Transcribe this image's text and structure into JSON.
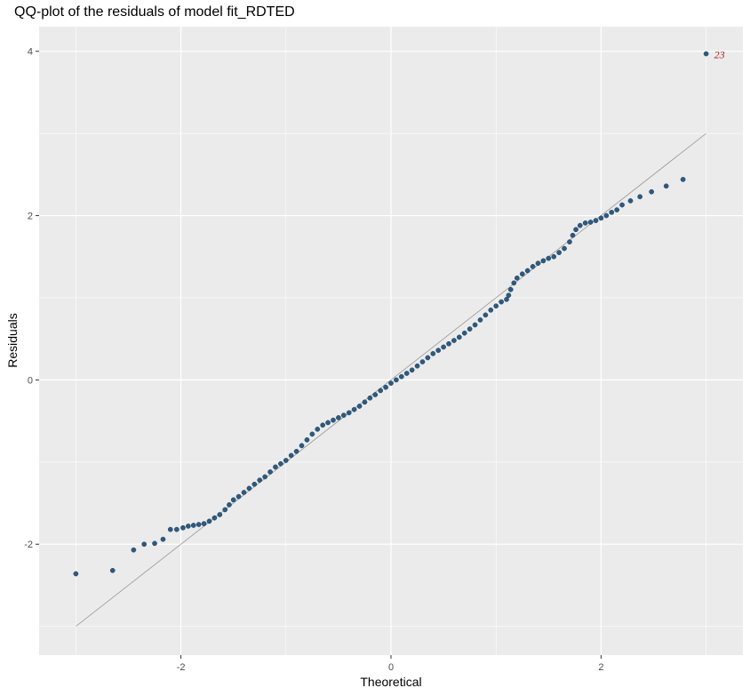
{
  "chart_data": {
    "type": "scatter",
    "title": "QQ-plot of the residuals of model fit_RDTED",
    "xlabel": "Theoretical",
    "ylabel": "Residuals",
    "xlim": [
      -3.35,
      3.35
    ],
    "ylim": [
      -3.35,
      4.3
    ],
    "x_ticks": [
      -2,
      0,
      2
    ],
    "x_tick_labels": [
      "-2",
      "0",
      "2"
    ],
    "y_ticks": [
      -2,
      0,
      2,
      4
    ],
    "y_tick_labels": [
      "-2",
      "0",
      "2",
      "4"
    ],
    "grid": true,
    "background": "#EBEBEB",
    "point_color": "#2E5A7F",
    "label_color": "#B22222",
    "reference_line": {
      "from": [
        -3.0,
        -3.0
      ],
      "to": [
        3.0,
        3.0
      ]
    },
    "points": [
      [
        -3.0,
        -2.36
      ],
      [
        -2.65,
        -2.32
      ],
      [
        -2.45,
        -2.07
      ],
      [
        -2.35,
        -2.0
      ],
      [
        -2.25,
        -1.99
      ],
      [
        -2.17,
        -1.94
      ],
      [
        -2.1,
        -1.82
      ],
      [
        -2.04,
        -1.82
      ],
      [
        -1.98,
        -1.8
      ],
      [
        -1.93,
        -1.78
      ],
      [
        -1.88,
        -1.77
      ],
      [
        -1.83,
        -1.76
      ],
      [
        -1.78,
        -1.75
      ],
      [
        -1.73,
        -1.72
      ],
      [
        -1.68,
        -1.68
      ],
      [
        -1.63,
        -1.64
      ],
      [
        -1.58,
        -1.58
      ],
      [
        -1.54,
        -1.52
      ],
      [
        -1.5,
        -1.46
      ],
      [
        -1.45,
        -1.42
      ],
      [
        -1.4,
        -1.37
      ],
      [
        -1.35,
        -1.32
      ],
      [
        -1.3,
        -1.27
      ],
      [
        -1.25,
        -1.22
      ],
      [
        -1.2,
        -1.18
      ],
      [
        -1.15,
        -1.12
      ],
      [
        -1.1,
        -1.06
      ],
      [
        -1.05,
        -1.02
      ],
      [
        -1.0,
        -0.98
      ],
      [
        -0.95,
        -0.92
      ],
      [
        -0.9,
        -0.87
      ],
      [
        -0.85,
        -0.8
      ],
      [
        -0.8,
        -0.73
      ],
      [
        -0.75,
        -0.66
      ],
      [
        -0.7,
        -0.6
      ],
      [
        -0.65,
        -0.55
      ],
      [
        -0.6,
        -0.52
      ],
      [
        -0.55,
        -0.49
      ],
      [
        -0.5,
        -0.46
      ],
      [
        -0.45,
        -0.43
      ],
      [
        -0.4,
        -0.4
      ],
      [
        -0.35,
        -0.36
      ],
      [
        -0.3,
        -0.32
      ],
      [
        -0.25,
        -0.27
      ],
      [
        -0.2,
        -0.22
      ],
      [
        -0.15,
        -0.18
      ],
      [
        -0.1,
        -0.13
      ],
      [
        -0.05,
        -0.09
      ],
      [
        0.0,
        -0.04
      ],
      [
        0.05,
        0.0
      ],
      [
        0.1,
        0.04
      ],
      [
        0.15,
        0.08
      ],
      [
        0.2,
        0.12
      ],
      [
        0.25,
        0.17
      ],
      [
        0.3,
        0.22
      ],
      [
        0.35,
        0.27
      ],
      [
        0.4,
        0.32
      ],
      [
        0.45,
        0.36
      ],
      [
        0.5,
        0.4
      ],
      [
        0.55,
        0.44
      ],
      [
        0.6,
        0.48
      ],
      [
        0.65,
        0.52
      ],
      [
        0.7,
        0.57
      ],
      [
        0.75,
        0.62
      ],
      [
        0.8,
        0.67
      ],
      [
        0.85,
        0.73
      ],
      [
        0.9,
        0.79
      ],
      [
        0.95,
        0.85
      ],
      [
        1.0,
        0.9
      ],
      [
        1.05,
        0.95
      ],
      [
        1.1,
        0.98
      ],
      [
        1.12,
        1.03
      ],
      [
        1.14,
        1.1
      ],
      [
        1.17,
        1.18
      ],
      [
        1.2,
        1.24
      ],
      [
        1.25,
        1.29
      ],
      [
        1.3,
        1.33
      ],
      [
        1.35,
        1.38
      ],
      [
        1.4,
        1.42
      ],
      [
        1.45,
        1.45
      ],
      [
        1.5,
        1.48
      ],
      [
        1.55,
        1.5
      ],
      [
        1.6,
        1.55
      ],
      [
        1.65,
        1.6
      ],
      [
        1.7,
        1.68
      ],
      [
        1.73,
        1.76
      ],
      [
        1.76,
        1.83
      ],
      [
        1.8,
        1.88
      ],
      [
        1.85,
        1.91
      ],
      [
        1.9,
        1.92
      ],
      [
        1.95,
        1.94
      ],
      [
        2.0,
        1.97
      ],
      [
        2.05,
        2.0
      ],
      [
        2.1,
        2.04
      ],
      [
        2.15,
        2.07
      ],
      [
        2.2,
        2.13
      ],
      [
        2.28,
        2.18
      ],
      [
        2.37,
        2.23
      ],
      [
        2.48,
        2.29
      ],
      [
        2.62,
        2.36
      ],
      [
        2.78,
        2.44
      ],
      [
        3.0,
        3.97
      ]
    ],
    "annotations": [
      {
        "text": "23",
        "x": 3.0,
        "y": 3.97
      }
    ]
  }
}
